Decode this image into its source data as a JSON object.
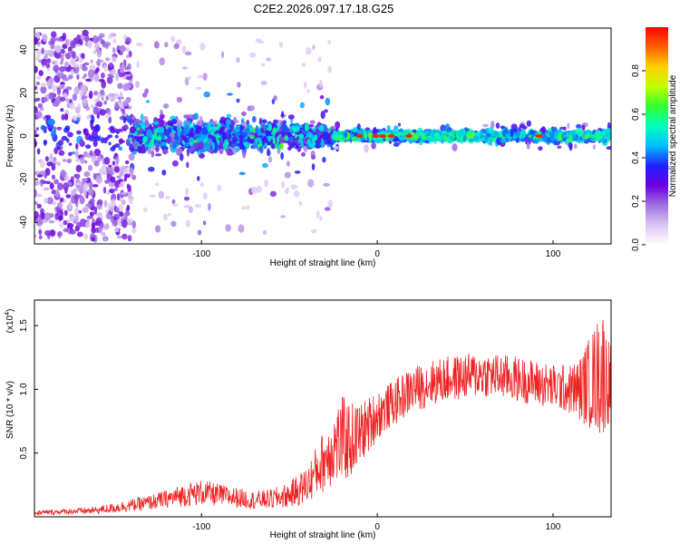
{
  "title": "C2E2.2026.097.17.18.G25",
  "chart_data": [
    {
      "type": "heatmap",
      "name": "spectrogram",
      "xlabel": "Height of straight line (km)",
      "ylabel": "Frequency (Hz)",
      "xlim": [
        -195,
        133
      ],
      "ylim": [
        -50,
        50
      ],
      "xticks": [
        -100,
        0,
        100
      ],
      "xtick_labels": [
        "-100",
        "0",
        "100"
      ],
      "yticks": [
        -40,
        -20,
        0,
        20,
        40
      ],
      "ytick_labels": [
        "-40",
        "-20",
        "0",
        "20",
        "40"
      ],
      "colorbar": {
        "label": "Normalized spectral amplitude",
        "range": [
          0,
          1
        ],
        "ticks": [
          0.0,
          0.2,
          0.4,
          0.6,
          0.8
        ],
        "tick_labels": [
          "0.0",
          "0.2",
          "0.4",
          "0.6",
          "0.8"
        ],
        "colormap": [
          "#ffffff",
          "#dcc6f2",
          "#a070e0",
          "#6a00e0",
          "#2020ff",
          "#00bfff",
          "#00ffc0",
          "#30ff30",
          "#c0ff00",
          "#ffd000",
          "#ff6000",
          "#ff0000"
        ]
      },
      "regions": [
        {
          "x_range": [
            -195,
            -140
          ],
          "freq_spread": 48,
          "amplitude": 0.25,
          "description": "scattered weak energy"
        },
        {
          "x_range": [
            -140,
            -25
          ],
          "freq_spread": 12,
          "amplitude": 0.35,
          "description": "broad band around 0 Hz"
        },
        {
          "x_range": [
            -25,
            133
          ],
          "freq_spread": 3,
          "amplitude": 0.6,
          "description": "narrow band at 0 Hz"
        }
      ],
      "peaks": [
        -10,
        -1,
        3,
        8,
        18,
        92
      ]
    },
    {
      "type": "line",
      "name": "snr",
      "xlabel": "Height of straight line (km)",
      "ylabel": "SNR (10 * v/v)",
      "scale_label": "(x10",
      "scale_exponent": "4",
      "scale_close": ")",
      "xlim": [
        -195,
        133
      ],
      "ylim": [
        0,
        1.7
      ],
      "xticks": [
        -100,
        0,
        100
      ],
      "xtick_labels": [
        "-100",
        "0",
        "100"
      ],
      "yticks": [
        0.5,
        1.0,
        1.5
      ],
      "ytick_labels": [
        "0.5",
        "1.0",
        "1.5"
      ],
      "color": "#ee2222",
      "series": [
        {
          "name": "SNR",
          "x": [
            -195,
            -180,
            -160,
            -150,
            -140,
            -130,
            -120,
            -110,
            -100,
            -90,
            -80,
            -70,
            -60,
            -50,
            -40,
            -35,
            -30,
            -25,
            -20,
            -15,
            -10,
            -5,
            0,
            5,
            10,
            15,
            20,
            25,
            30,
            40,
            50,
            60,
            70,
            80,
            90,
            100,
            110,
            115,
            120,
            125,
            128,
            130,
            133
          ],
          "y": [
            0.03,
            0.04,
            0.05,
            0.07,
            0.09,
            0.11,
            0.14,
            0.17,
            0.19,
            0.17,
            0.15,
            0.13,
            0.14,
            0.17,
            0.25,
            0.35,
            0.45,
            0.55,
            0.6,
            0.6,
            0.65,
            0.72,
            0.8,
            0.85,
            0.9,
            0.95,
            1.0,
            1.02,
            1.05,
            1.08,
            1.1,
            1.12,
            1.1,
            1.08,
            1.05,
            1.02,
            1.0,
            1.0,
            1.05,
            1.1,
            1.15,
            1.1,
            1.05
          ],
          "noise_amplitude": [
            0.02,
            0.02,
            0.03,
            0.04,
            0.05,
            0.06,
            0.07,
            0.09,
            0.1,
            0.09,
            0.08,
            0.07,
            0.08,
            0.1,
            0.15,
            0.2,
            0.25,
            0.3,
            0.35,
            0.3,
            0.25,
            0.22,
            0.2,
            0.18,
            0.18,
            0.18,
            0.18,
            0.18,
            0.18,
            0.18,
            0.18,
            0.18,
            0.18,
            0.18,
            0.18,
            0.18,
            0.2,
            0.25,
            0.35,
            0.45,
            0.55,
            0.4,
            0.3
          ]
        }
      ]
    }
  ]
}
